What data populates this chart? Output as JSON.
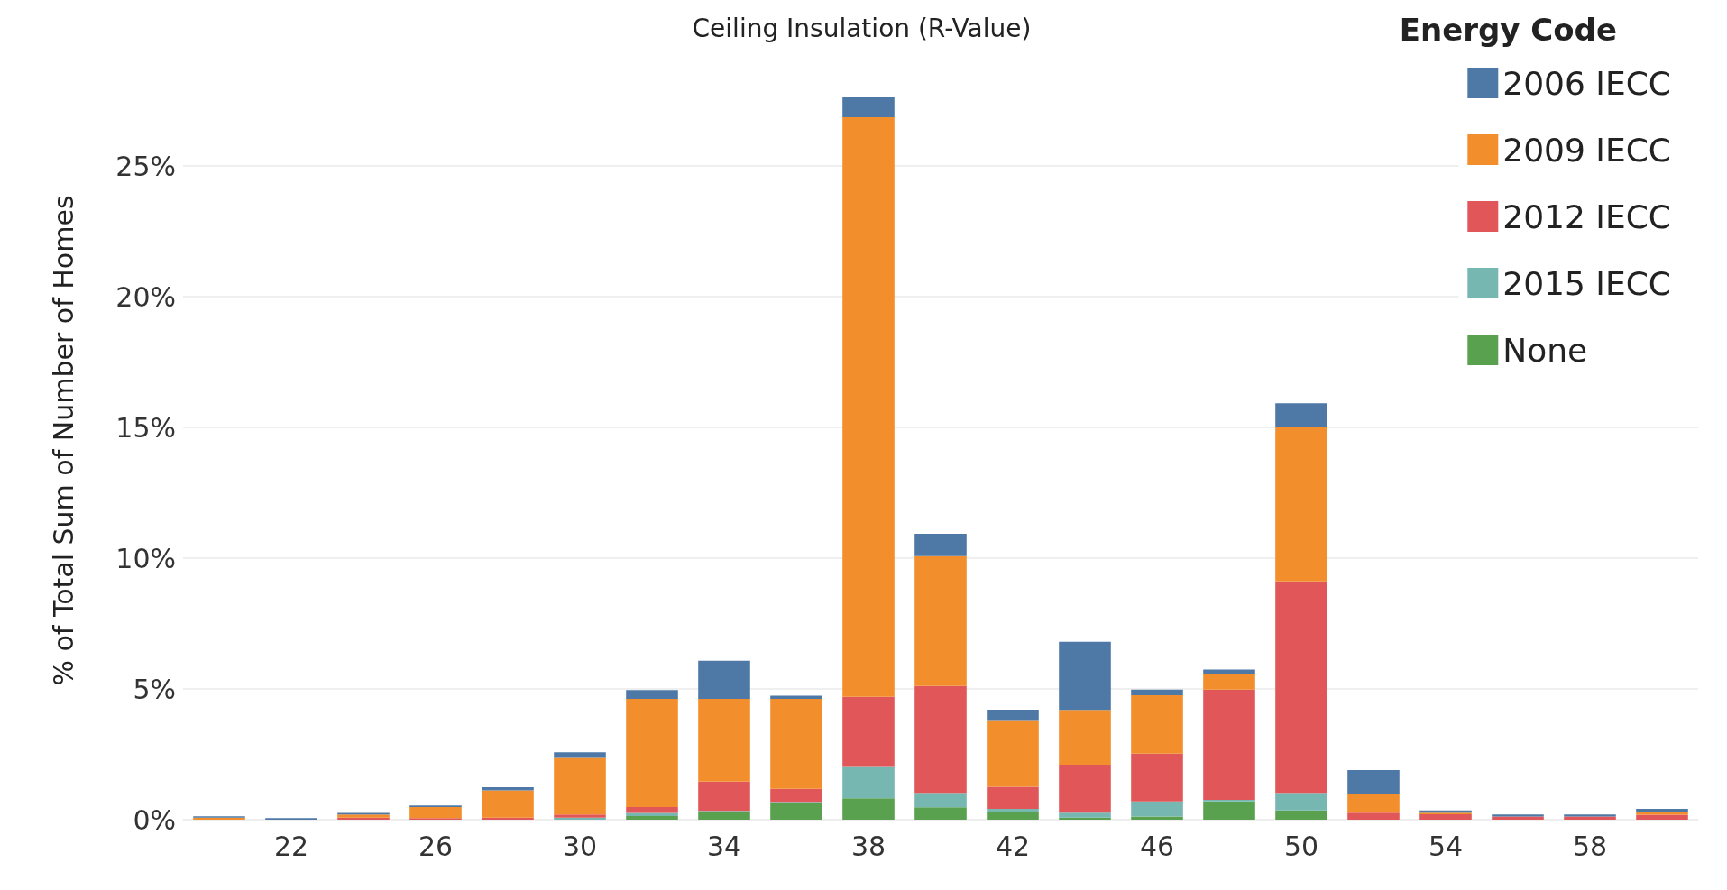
{
  "chart_data": {
    "type": "bar",
    "stacked": true,
    "title": "Ceiling Insulation (R-Value)",
    "ylabel": "% of Total Sum of Number of Homes",
    "legend_title": "Energy Code",
    "legend": "top right",
    "grid": "y",
    "categories": [
      null,
      "22",
      null,
      "26",
      null,
      "30",
      null,
      "34",
      null,
      "38",
      null,
      "42",
      null,
      "46",
      null,
      "50",
      null,
      "54",
      null,
      "58",
      null
    ],
    "ylim": [
      0,
      29
    ],
    "yticks": [
      {
        "value": 0,
        "label": "0%"
      },
      {
        "value": 5,
        "label": "5%"
      },
      {
        "value": 10,
        "label": "10%"
      },
      {
        "value": 15,
        "label": "15%"
      },
      {
        "value": 20,
        "label": "20%"
      },
      {
        "value": 25,
        "label": "25%"
      }
    ],
    "series": [
      {
        "name": "None",
        "color": "#59a14f",
        "values": [
          0,
          0,
          0,
          0,
          0,
          0,
          0.14,
          0.28,
          0.62,
          0.82,
          0.47,
          0.29,
          0.08,
          0.12,
          0.7,
          0.35,
          0,
          0,
          0,
          0,
          0
        ]
      },
      {
        "name": "2015 IECC",
        "color": "#76b7b2",
        "values": [
          0,
          0,
          0,
          0,
          0,
          0.08,
          0.12,
          0.06,
          0.06,
          1.2,
          0.56,
          0.12,
          0.19,
          0.58,
          0.06,
          0.68,
          0,
          0,
          0,
          0,
          0
        ]
      },
      {
        "name": "2012 IECC",
        "color": "#e15759",
        "values": [
          0,
          0,
          0.08,
          0.06,
          0.08,
          0.12,
          0.22,
          1.12,
          0.5,
          2.68,
          4.08,
          0.85,
          1.83,
          1.83,
          4.21,
          8.08,
          0.27,
          0.21,
          0.12,
          0.12,
          0.19
        ]
      },
      {
        "name": "2009 IECC",
        "color": "#f28e2b",
        "values": [
          0.08,
          0,
          0.12,
          0.42,
          1.04,
          2.16,
          4.14,
          3.16,
          3.44,
          22.16,
          4.97,
          2.52,
          2.1,
          2.23,
          0.58,
          5.9,
          0.7,
          0.06,
          0,
          0,
          0.1
        ]
      },
      {
        "name": "2006 IECC",
        "color": "#4e79a7",
        "values": [
          0.05,
          0.06,
          0.06,
          0.06,
          0.12,
          0.22,
          0.34,
          1.46,
          0.12,
          0.76,
          0.85,
          0.43,
          2.6,
          0.21,
          0.19,
          0.91,
          0.93,
          0.08,
          0.08,
          0.08,
          0.12
        ]
      }
    ]
  }
}
